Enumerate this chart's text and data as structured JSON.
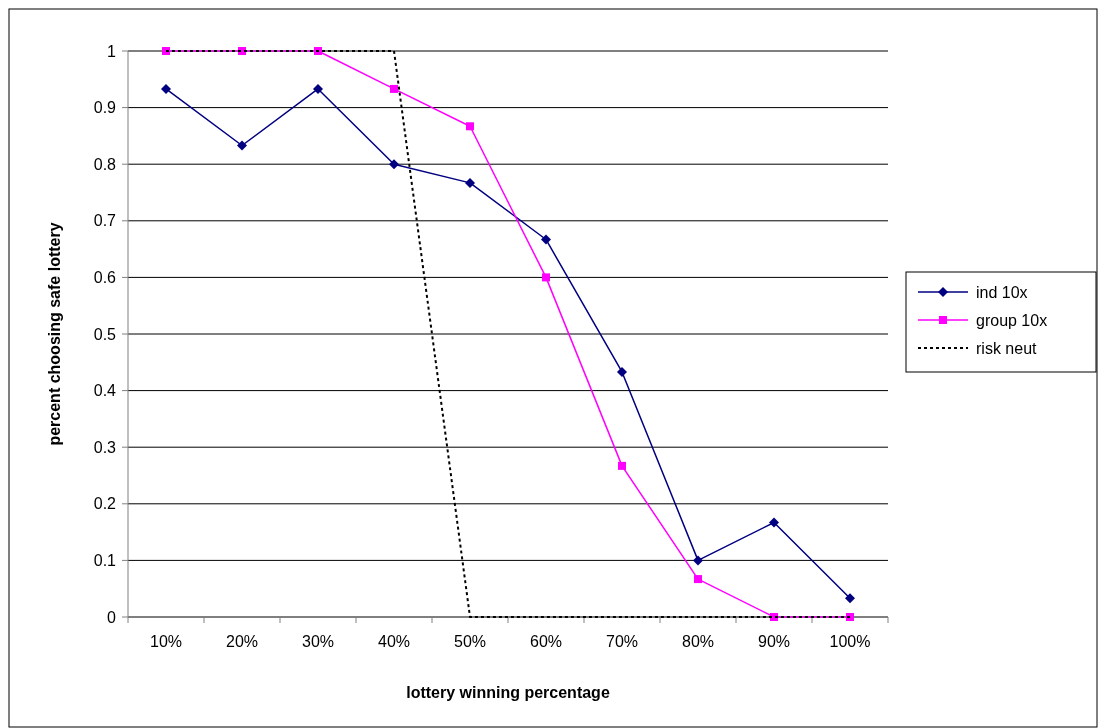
{
  "chart_data": {
    "type": "line",
    "xlabel": "lottery winning percentage",
    "ylabel": "percent choosing safe lottery",
    "categories": [
      "10%",
      "20%",
      "30%",
      "40%",
      "50%",
      "60%",
      "70%",
      "80%",
      "90%",
      "100%"
    ],
    "series": [
      {
        "name": "ind 10x",
        "color": "#000080",
        "marker": "diamond",
        "line_style": "solid",
        "values": [
          0.933,
          0.833,
          0.933,
          0.8,
          0.767,
          0.667,
          0.433,
          0.1,
          0.167,
          0.033
        ]
      },
      {
        "name": "group 10x",
        "color": "#ff00ff",
        "marker": "square",
        "line_style": "solid",
        "values": [
          1,
          1,
          1,
          0.933,
          0.867,
          0.6,
          0.267,
          0.067,
          0,
          0
        ]
      },
      {
        "name": "risk neut",
        "color": "#000000",
        "marker": "none",
        "line_style": "dotted",
        "values": [
          1,
          1,
          1,
          1,
          0,
          0,
          0,
          0,
          0,
          0
        ]
      }
    ],
    "ylim": [
      0,
      1
    ],
    "yticks": [
      0,
      0.1,
      0.2,
      0.3,
      0.4,
      0.5,
      0.6,
      0.7,
      0.8,
      0.9,
      1
    ],
    "grid": "y",
    "legend": "right"
  }
}
